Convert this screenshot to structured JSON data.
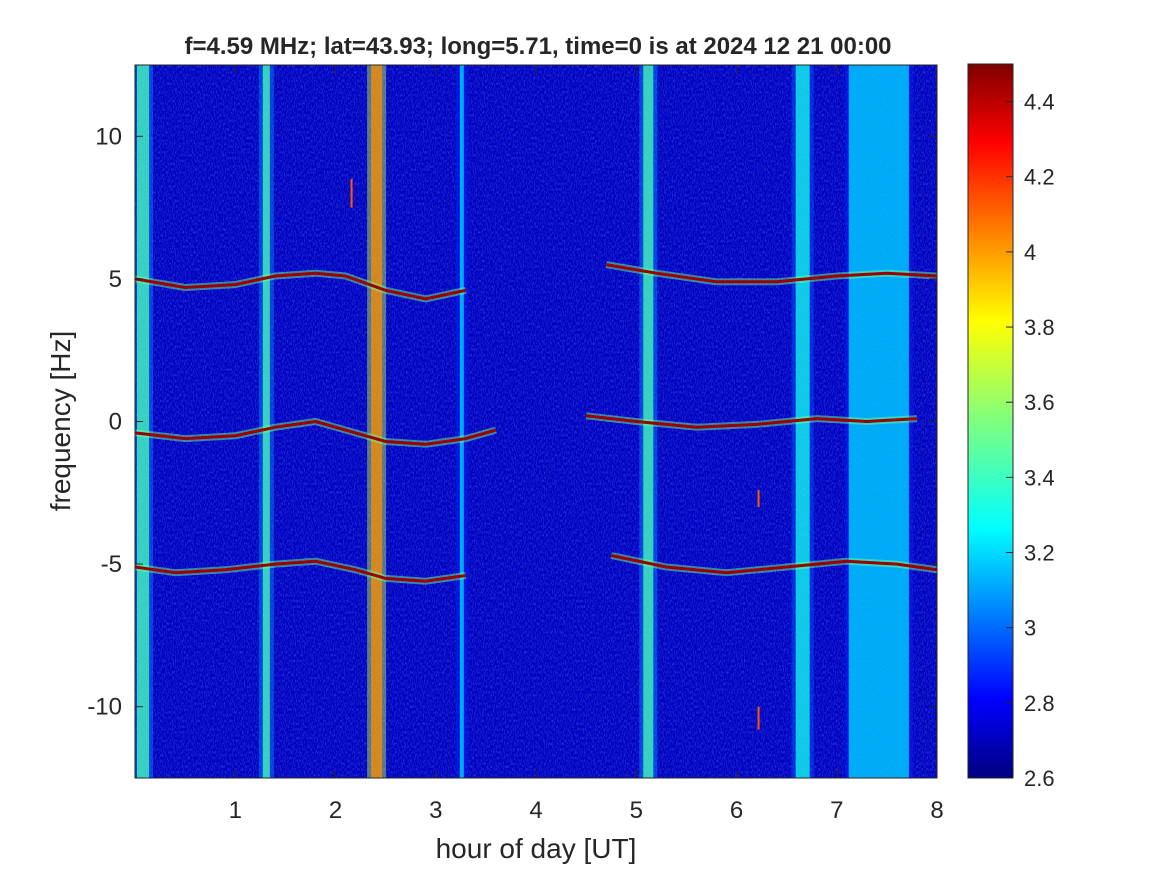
{
  "chart_data": {
    "type": "heatmap",
    "title": "f=4.59 MHz;  lat=43.93; long=5.71, time=0 is at 2024 12 21 00:00",
    "xlabel": "hour of day [UT]",
    "ylabel": "frequency [Hz]",
    "xlim": [
      0,
      8
    ],
    "ylim": [
      -12.5,
      12.5
    ],
    "x_ticks": [
      1,
      2,
      3,
      4,
      5,
      6,
      7,
      8
    ],
    "y_ticks": [
      -10,
      -5,
      0,
      5,
      10
    ],
    "colorbar": {
      "colormap": "jet",
      "clim": [
        2.6,
        4.5
      ],
      "ticks": [
        2.6,
        2.8,
        3,
        3.2,
        3.4,
        3.6,
        3.8,
        4,
        4.2,
        4.4
      ]
    },
    "background_level": 2.72,
    "vertical_bands": [
      {
        "x": 0.08,
        "width": 0.12,
        "level": 3.45
      },
      {
        "x": 1.31,
        "width": 0.07,
        "level": 3.45
      },
      {
        "x": 2.41,
        "width": 0.11,
        "level": 4.0
      },
      {
        "x": 3.26,
        "width": 0.04,
        "level": 3.25
      },
      {
        "x": 5.12,
        "width": 0.1,
        "level": 3.45
      },
      {
        "x": 6.66,
        "width": 0.14,
        "level": 3.35
      },
      {
        "x": 7.42,
        "width": 0.6,
        "level": 3.25
      }
    ],
    "series": [
      {
        "x": [
          0.0,
          0.5,
          1.0,
          1.4,
          1.8,
          2.1,
          2.5,
          2.9,
          3.3
        ],
        "y": [
          5.0,
          4.7,
          4.8,
          5.1,
          5.2,
          5.1,
          4.6,
          4.3,
          4.6
        ]
      },
      {
        "x": [
          0.0,
          0.5,
          1.0,
          1.4,
          1.8,
          2.2,
          2.5,
          2.9,
          3.3,
          3.6
        ],
        "y": [
          -0.4,
          -0.6,
          -0.5,
          -0.2,
          0.0,
          -0.4,
          -0.7,
          -0.8,
          -0.6,
          -0.3
        ]
      },
      {
        "x": [
          0.0,
          0.4,
          0.9,
          1.4,
          1.8,
          2.2,
          2.5,
          2.9,
          3.3
        ],
        "y": [
          -5.1,
          -5.3,
          -5.2,
          -5.0,
          -4.9,
          -5.2,
          -5.5,
          -5.6,
          -5.4
        ]
      },
      {
        "x": [
          4.7,
          5.2,
          5.8,
          6.4,
          7.0,
          7.5,
          8.0
        ],
        "y": [
          5.5,
          5.2,
          4.9,
          4.9,
          5.1,
          5.2,
          5.1
        ]
      },
      {
        "x": [
          4.5,
          5.0,
          5.6,
          6.2,
          6.8,
          7.3,
          7.8
        ],
        "y": [
          0.2,
          0.0,
          -0.2,
          -0.1,
          0.1,
          0.0,
          0.1
        ]
      },
      {
        "x": [
          4.75,
          5.3,
          5.9,
          6.5,
          7.1,
          7.6,
          8.0
        ],
        "y": [
          -4.7,
          -5.1,
          -5.3,
          -5.1,
          -4.9,
          -5.0,
          -5.2
        ]
      }
    ],
    "artifacts": [
      {
        "x": 2.16,
        "y1": 8.5,
        "y2": 7.5
      },
      {
        "x": 6.22,
        "y1": -2.4,
        "y2": -3.0
      },
      {
        "x": 6.22,
        "y1": -10.0,
        "y2": -10.8
      }
    ]
  }
}
